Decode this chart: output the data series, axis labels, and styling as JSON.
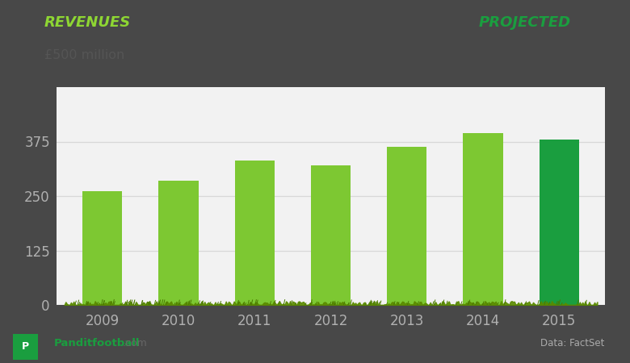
{
  "categories": [
    "2009",
    "2010",
    "2011",
    "2012",
    "2013",
    "2014",
    "2015"
  ],
  "values": [
    262,
    286,
    331,
    320,
    363,
    395,
    380
  ],
  "bar_colors": [
    "#7dc832",
    "#7dc832",
    "#7dc832",
    "#7dc832",
    "#7dc832",
    "#7dc832",
    "#1a9e3f"
  ],
  "header_bg": "#484848",
  "chart_bg": "#f2f2f2",
  "title_left": "REVENUES",
  "title_right": "PROJECTED",
  "title_left_color": "#8ed633",
  "title_right_color": "#1a9e3f",
  "ylabel": "£500 million",
  "yticks": [
    0,
    125,
    250,
    375
  ],
  "ylim": [
    0,
    500
  ],
  "footer_right": "Data: FactSet",
  "grass_color": "#5a8a00",
  "grass_color2": "#4a7a00",
  "tick_color": "#b0b0b0",
  "grid_color": "#d8d8d8"
}
